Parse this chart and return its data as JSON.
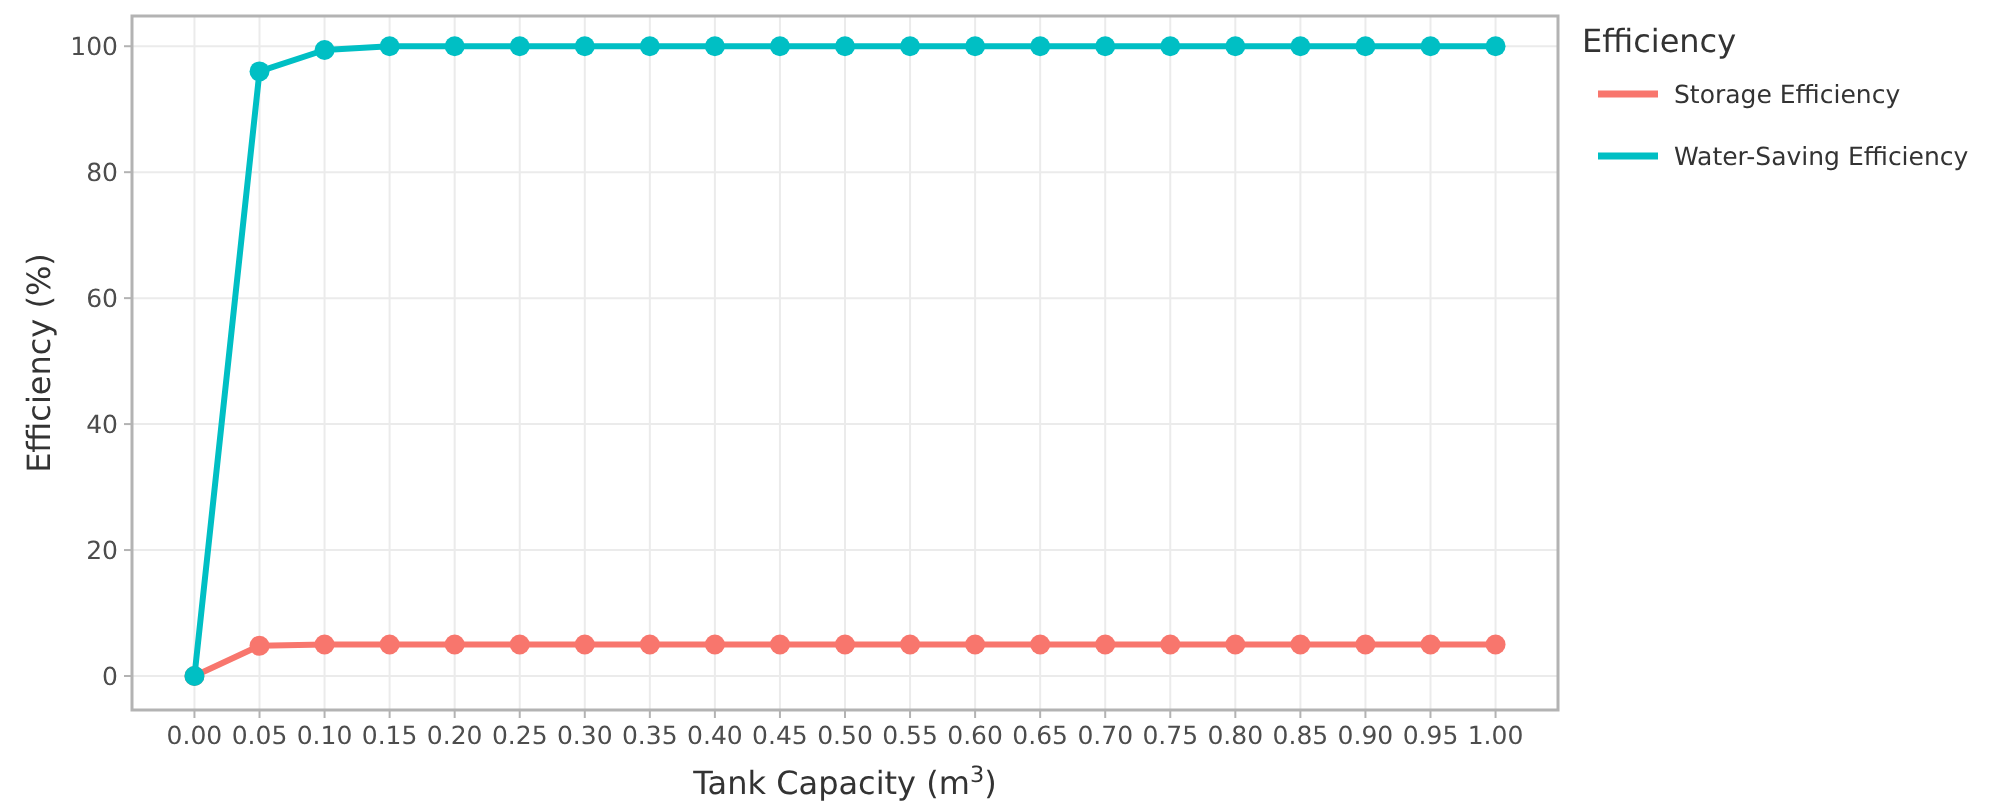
{
  "chart_data": {
    "type": "line",
    "xlabel": "Tank Capacity (m$^{3}$)",
    "ylabel": "Efficiency (%)",
    "legend_title": "Efficiency",
    "legend": "right",
    "x": [
      0,
      0.05,
      0.1,
      0.15,
      0.2,
      0.25,
      0.3,
      0.35,
      0.4,
      0.45,
      0.5,
      0.55,
      0.6,
      0.65,
      0.7,
      0.75,
      0.8,
      0.85,
      0.9,
      0.95,
      1
    ],
    "series": [
      {
        "name": "Storage Efficiency",
        "color": "#f8766d",
        "values": [
          0,
          4.8,
          5,
          5,
          5,
          5,
          5,
          5,
          5,
          5,
          5,
          5,
          5,
          5,
          5,
          5,
          5,
          5,
          5,
          5,
          5
        ]
      },
      {
        "name": "Water-Saving Efficiency",
        "color": "#00bfc4",
        "values": [
          0,
          96,
          99.4,
          100,
          100,
          100,
          100,
          100,
          100,
          100,
          100,
          100,
          100,
          100,
          100,
          100,
          100,
          100,
          100,
          100,
          100
        ]
      }
    ],
    "xlim": [
      -0.048,
      1.048
    ],
    "ylim": [
      -5.4,
      104.8
    ],
    "xticks": [
      {
        "value": 0,
        "label": "0.00"
      },
      {
        "value": 0.05,
        "label": "0.05"
      },
      {
        "value": 0.1,
        "label": "0.10"
      },
      {
        "value": 0.15,
        "label": "0.15"
      },
      {
        "value": 0.2,
        "label": "0.20"
      },
      {
        "value": 0.25,
        "label": "0.25"
      },
      {
        "value": 0.3,
        "label": "0.30"
      },
      {
        "value": 0.35,
        "label": "0.35"
      },
      {
        "value": 0.4,
        "label": "0.40"
      },
      {
        "value": 0.45,
        "label": "0.45"
      },
      {
        "value": 0.5,
        "label": "0.50"
      },
      {
        "value": 0.55,
        "label": "0.55"
      },
      {
        "value": 0.6,
        "label": "0.60"
      },
      {
        "value": 0.65,
        "label": "0.65"
      },
      {
        "value": 0.7,
        "label": "0.70"
      },
      {
        "value": 0.75,
        "label": "0.75"
      },
      {
        "value": 0.8,
        "label": "0.80"
      },
      {
        "value": 0.85,
        "label": "0.85"
      },
      {
        "value": 0.9,
        "label": "0.90"
      },
      {
        "value": 0.95,
        "label": "0.95"
      },
      {
        "value": 1,
        "label": "1.00"
      }
    ],
    "yticks": [
      0,
      20,
      40,
      60,
      80,
      100
    ],
    "grid": true,
    "marker": "circle",
    "line_style": "solid"
  }
}
